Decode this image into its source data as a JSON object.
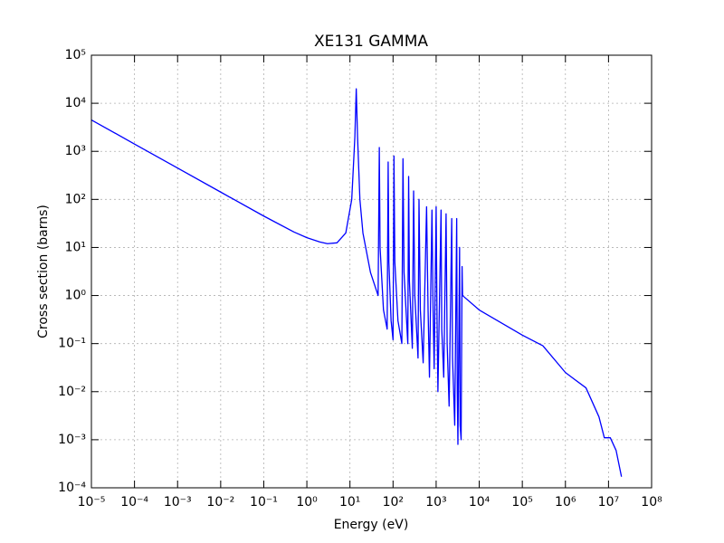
{
  "chart_data": {
    "type": "line",
    "title": "XE131 GAMMA",
    "x_label": "Energy (eV)",
    "y_label": "Cross section (barns)",
    "xscale": "log",
    "yscale": "log",
    "grid": true,
    "color": "#0000ff",
    "x": [
      1e-05,
      0.0001,
      0.001,
      0.01,
      0.1,
      0.5,
      1,
      2,
      3,
      5,
      8,
      11,
      13,
      14,
      15,
      17,
      20,
      30,
      45,
      48,
      50,
      60,
      73,
      77,
      80,
      90,
      100,
      105,
      110,
      130,
      160,
      170,
      180,
      220,
      230,
      240,
      280,
      300,
      320,
      380,
      400,
      430,
      500,
      600,
      650,
      700,
      800,
      850,
      900,
      1000,
      1050,
      1100,
      1300,
      1350,
      1500,
      1700,
      1800,
      2000,
      2300,
      2400,
      2700,
      3000,
      3100,
      3200,
      3500,
      3600,
      3800,
      4000,
      4100,
      10000.0,
      100000.0,
      300000.0,
      1000000.0,
      3000000.0,
      6000000.0,
      8000000.0,
      11000000.0,
      15000000.0,
      20000000.0
    ],
    "values": [
      4500,
      1420,
      450,
      142,
      45,
      21,
      16,
      13,
      12,
      12.5,
      20,
      100,
      2000,
      20000,
      2000,
      100,
      20,
      3,
      1,
      1200,
      10,
      0.5,
      0.2,
      600,
      5,
      0.3,
      0.12,
      800,
      5,
      0.3,
      0.1,
      700,
      3,
      0.1,
      300,
      2,
      0.08,
      150,
      1,
      0.05,
      100,
      0.5,
      0.04,
      70,
      0.5,
      0.02,
      60,
      0.5,
      0.03,
      70,
      0.3,
      0.01,
      60,
      0.2,
      0.02,
      50,
      0.1,
      0.005,
      40,
      0.05,
      0.002,
      40,
      0.01,
      0.0008,
      10,
      0.002,
      0.001,
      4,
      1,
      0.5,
      0.15,
      0.09,
      0.025,
      0.012,
      0.003,
      0.0011,
      0.0011,
      0.0006,
      0.00017
    ],
    "xlim": [
      1e-05,
      100000000.0
    ],
    "ylim": [
      0.0001,
      100000.0
    ],
    "xticks": [
      {
        "value": 1e-05,
        "label": "10⁻⁵"
      },
      {
        "value": 0.0001,
        "label": "10⁻⁴"
      },
      {
        "value": 0.001,
        "label": "10⁻³"
      },
      {
        "value": 0.01,
        "label": "10⁻²"
      },
      {
        "value": 0.1,
        "label": "10⁻¹"
      },
      {
        "value": 1,
        "label": "10⁰"
      },
      {
        "value": 10,
        "label": "10¹"
      },
      {
        "value": 100,
        "label": "10²"
      },
      {
        "value": 1000,
        "label": "10³"
      },
      {
        "value": 10000,
        "label": "10⁴"
      },
      {
        "value": 100000,
        "label": "10⁵"
      },
      {
        "value": 1000000,
        "label": "10⁶"
      },
      {
        "value": 10000000,
        "label": "10⁷"
      },
      {
        "value": 100000000,
        "label": "10⁸"
      }
    ],
    "yticks": [
      {
        "value": 0.0001,
        "label": "10⁻⁴"
      },
      {
        "value": 0.001,
        "label": "10⁻³"
      },
      {
        "value": 0.01,
        "label": "10⁻²"
      },
      {
        "value": 0.1,
        "label": "10⁻¹"
      },
      {
        "value": 1,
        "label": "10⁰"
      },
      {
        "value": 10,
        "label": "10¹"
      },
      {
        "value": 100,
        "label": "10²"
      },
      {
        "value": 1000,
        "label": "10³"
      },
      {
        "value": 10000,
        "label": "10⁴"
      },
      {
        "value": 100000,
        "label": "10⁵"
      }
    ]
  }
}
